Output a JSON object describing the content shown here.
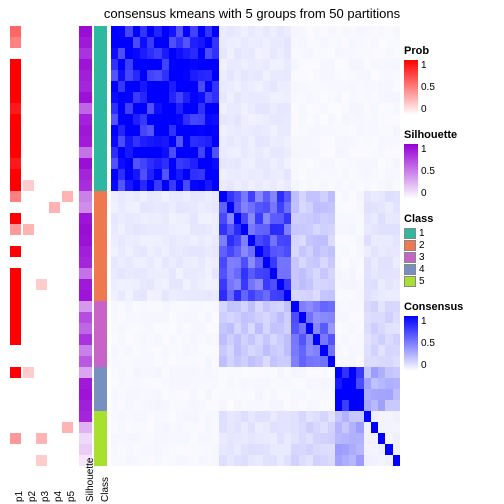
{
  "title": "consensus kmeans with 5 groups from 50 partitions",
  "title_fontsize": 13,
  "background_color": "#ffffff",
  "layout": {
    "total_width": 504,
    "total_height": 504,
    "annot_col_width": 11,
    "annot_gap": 2,
    "spacer_width": 4,
    "label_fontsize": 10
  },
  "n_samples": 40,
  "class_assignment": [
    1,
    1,
    1,
    1,
    1,
    1,
    1,
    1,
    1,
    1,
    1,
    1,
    1,
    1,
    1,
    2,
    2,
    2,
    2,
    2,
    2,
    2,
    2,
    2,
    2,
    3,
    3,
    3,
    3,
    3,
    3,
    4,
    4,
    4,
    4,
    5,
    5,
    5,
    5,
    5
  ],
  "silhouette": [
    0.95,
    0.9,
    0.8,
    0.92,
    0.88,
    0.85,
    0.93,
    0.6,
    0.87,
    0.91,
    0.89,
    0.55,
    0.94,
    0.86,
    0.82,
    0.5,
    0.45,
    0.92,
    0.95,
    0.93,
    0.88,
    0.85,
    0.55,
    0.9,
    0.92,
    0.4,
    0.7,
    0.6,
    0.8,
    0.5,
    0.65,
    0.35,
    0.9,
    0.92,
    0.88,
    0.85,
    0.3,
    0.15,
    0.2,
    0.1
  ],
  "p_columns": {
    "labels": [
      "p1",
      "p2",
      "p3",
      "p4",
      "p5"
    ],
    "data": [
      [
        0.6,
        0.0,
        0.0,
        0.0,
        0.0
      ],
      [
        0.5,
        0.0,
        0.0,
        0.0,
        0.0
      ],
      [
        0.0,
        0.0,
        0.0,
        0.0,
        0.0
      ],
      [
        1.0,
        0.0,
        0.0,
        0.0,
        0.0
      ],
      [
        1.0,
        0.0,
        0.0,
        0.0,
        0.0
      ],
      [
        1.0,
        0.0,
        0.0,
        0.0,
        0.0
      ],
      [
        1.0,
        0.0,
        0.0,
        0.0,
        0.0
      ],
      [
        0.9,
        0.0,
        0.0,
        0.0,
        0.0
      ],
      [
        1.0,
        0.0,
        0.0,
        0.0,
        0.0
      ],
      [
        1.0,
        0.0,
        0.0,
        0.0,
        0.0
      ],
      [
        1.0,
        0.0,
        0.0,
        0.0,
        0.0
      ],
      [
        1.0,
        0.0,
        0.0,
        0.0,
        0.0
      ],
      [
        0.9,
        0.0,
        0.0,
        0.0,
        0.0
      ],
      [
        1.0,
        0.0,
        0.0,
        0.0,
        0.0
      ],
      [
        1.0,
        0.2,
        0.0,
        0.0,
        0.0
      ],
      [
        0.5,
        0.0,
        0.0,
        0.0,
        0.3
      ],
      [
        0.0,
        0.0,
        0.0,
        0.3,
        0.0
      ],
      [
        1.0,
        0.0,
        0.0,
        0.0,
        0.0
      ],
      [
        0.4,
        0.3,
        0.0,
        0.0,
        0.0
      ],
      [
        0.0,
        0.0,
        0.0,
        0.0,
        0.0
      ],
      [
        1.0,
        0.0,
        0.0,
        0.0,
        0.0
      ],
      [
        0.0,
        0.0,
        0.0,
        0.0,
        0.0
      ],
      [
        1.0,
        0.0,
        0.0,
        0.0,
        0.0
      ],
      [
        1.0,
        0.0,
        0.2,
        0.0,
        0.0
      ],
      [
        1.0,
        0.0,
        0.0,
        0.0,
        0.0
      ],
      [
        1.0,
        0.0,
        0.0,
        0.0,
        0.0
      ],
      [
        1.0,
        0.0,
        0.0,
        0.0,
        0.0
      ],
      [
        1.0,
        0.0,
        0.0,
        0.0,
        0.0
      ],
      [
        1.0,
        0.0,
        0.0,
        0.0,
        0.0
      ],
      [
        0.0,
        0.0,
        0.0,
        0.0,
        0.0
      ],
      [
        0.0,
        0.0,
        0.0,
        0.0,
        0.0
      ],
      [
        1.0,
        0.2,
        0.0,
        0.0,
        0.0
      ],
      [
        0.0,
        0.0,
        0.0,
        0.0,
        0.0
      ],
      [
        0.0,
        0.0,
        0.0,
        0.0,
        0.0
      ],
      [
        0.0,
        0.0,
        0.0,
        0.0,
        0.0
      ],
      [
        0.0,
        0.0,
        0.0,
        0.0,
        0.0
      ],
      [
        0.0,
        0.0,
        0.0,
        0.0,
        0.3
      ],
      [
        0.4,
        0.0,
        0.3,
        0.0,
        0.0
      ],
      [
        0.0,
        0.0,
        0.0,
        0.0,
        0.0
      ],
      [
        0.0,
        0.0,
        0.2,
        0.0,
        0.0
      ]
    ]
  },
  "palettes": {
    "prob": {
      "low": "#ffffff",
      "high": "#ff0000"
    },
    "silhouette": {
      "low": "#ffffff",
      "high": "#9400d3"
    },
    "consensus": {
      "low": "#ffffff",
      "high": "#0000ff"
    },
    "class": {
      "1": "#2fb8a0",
      "2": "#f07850",
      "3": "#c864c8",
      "4": "#7890c0",
      "5": "#a8e030"
    }
  },
  "consensus_blocks": {
    "within": {
      "1": 0.95,
      "2": 0.65,
      "3": 0.55,
      "4": 1.0,
      "5": 0.05
    },
    "between_default": 0.03,
    "specific": {
      "2-3": 0.2,
      "3-2": 0.2,
      "1-2": 0.08,
      "2-1": 0.08,
      "2-5": 0.1,
      "5-2": 0.1,
      "5-4": 0.3,
      "4-5": 0.3,
      "5-3": 0.15,
      "3-5": 0.15
    }
  },
  "legends": {
    "prob": {
      "title": "Prob",
      "ticks": [
        "1",
        "0.5",
        "0"
      ]
    },
    "silhouette": {
      "title": "Silhouette",
      "ticks": [
        "1",
        "0.5",
        "0"
      ]
    },
    "class": {
      "title": "Class",
      "items": [
        "1",
        "2",
        "3",
        "4",
        "5"
      ]
    },
    "consensus": {
      "title": "Consensus",
      "ticks": [
        "1",
        "0.5",
        "0"
      ]
    }
  },
  "x_labels": [
    "p1",
    "p2",
    "p3",
    "p4",
    "p5",
    "Silhouette",
    "Class"
  ]
}
